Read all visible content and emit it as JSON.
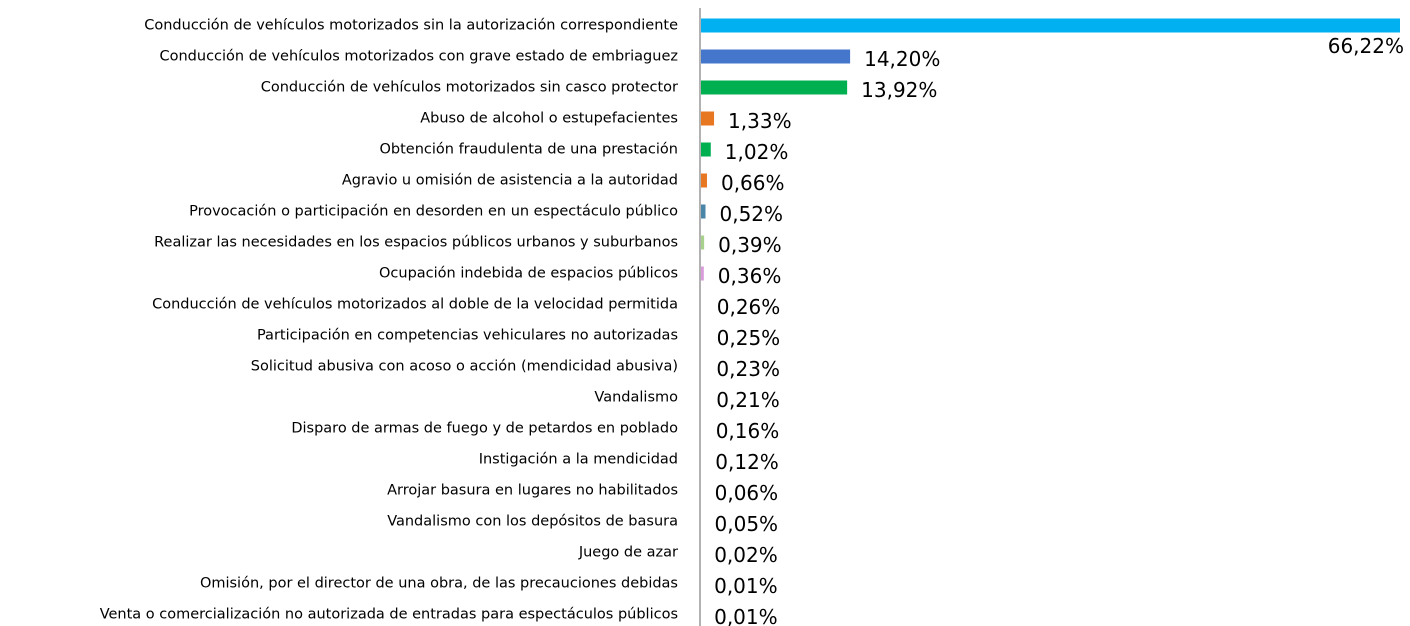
{
  "chart_data": {
    "type": "hbar",
    "categories": [
      "Conducción de vehículos motorizados sin la autorización correspondiente",
      "Conducción de vehículos motorizados con grave estado de embriaguez",
      "Conducción de vehículos motorizados sin casco protector",
      "Abuso de alcohol o estupefacientes",
      "Obtención fraudulenta de una prestación",
      "Agravio u omisión de asistencia a la autoridad",
      "Provocación o participación en desorden en un espectáculo público",
      "Realizar las necesidades en los espacios públicos urbanos y suburbanos",
      "Ocupación indebida de espacios públicos",
      "Conducción de vehículos motorizados al doble de la velocidad permitida",
      "Participación en competencias vehiculares no autorizadas",
      "Solicitud abusiva con acoso o acción (mendicidad abusiva)",
      "Vandalismo",
      "Disparo de armas de fuego y de petardos en poblado",
      "Instigación a la mendicidad",
      "Arrojar basura en lugares no habilitados",
      "Vandalismo con los depósitos de basura",
      "Juego de azar",
      "Omisión, por el director de una obra, de las precauciones debidas",
      "Venta o comercialización no autorizada de entradas para espectáculos públicos"
    ],
    "values": [
      66.22,
      14.2,
      13.92,
      1.33,
      1.02,
      0.66,
      0.52,
      0.39,
      0.36,
      0.26,
      0.25,
      0.23,
      0.21,
      0.16,
      0.12,
      0.06,
      0.05,
      0.02,
      0.01,
      0.01
    ],
    "value_labels": [
      "66,22%",
      "14,20%",
      "13,92%",
      "1,33%",
      "1,02%",
      "0,66%",
      "0,52%",
      "0,39%",
      "0,36%",
      "0,26%",
      "0,25%",
      "0,23%",
      "0,21%",
      "0,16%",
      "0,12%",
      "0,06%",
      "0,05%",
      "0,02%",
      "0,01%",
      "0,01%"
    ],
    "colors": [
      "#00b0f0",
      "#4477cc",
      "#00b050",
      "#e87722",
      "#00b050",
      "#e87722",
      "#4a86a8",
      "#a9d18e",
      "#d99bd9",
      "#ffffff",
      "#ffffff",
      "#ffffff",
      "#ffffff",
      "#ffffff",
      "#ffffff",
      "#ffffff",
      "#ffffff",
      "#ffffff",
      "#ffffff",
      "#ffffff"
    ]
  }
}
